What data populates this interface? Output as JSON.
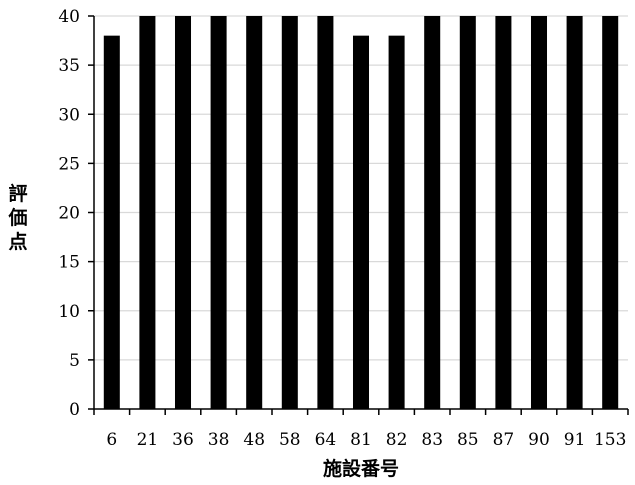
{
  "chart_data": {
    "type": "bar",
    "title": "",
    "xlabel": "施設番号",
    "ylabel": "評価点",
    "categories": [
      "6",
      "21",
      "36",
      "38",
      "48",
      "58",
      "64",
      "81",
      "82",
      "83",
      "85",
      "87",
      "90",
      "91",
      "153"
    ],
    "values": [
      38,
      40,
      40,
      40,
      40,
      40,
      40,
      38,
      38,
      40,
      40,
      40,
      40,
      40,
      40
    ],
    "ylim": [
      0,
      40
    ],
    "yticks": [
      0,
      5,
      10,
      15,
      20,
      25,
      30,
      35,
      40
    ],
    "grid": true,
    "legend": "none",
    "bar_color": "#000000",
    "grid_color": "#d9d9d9"
  }
}
